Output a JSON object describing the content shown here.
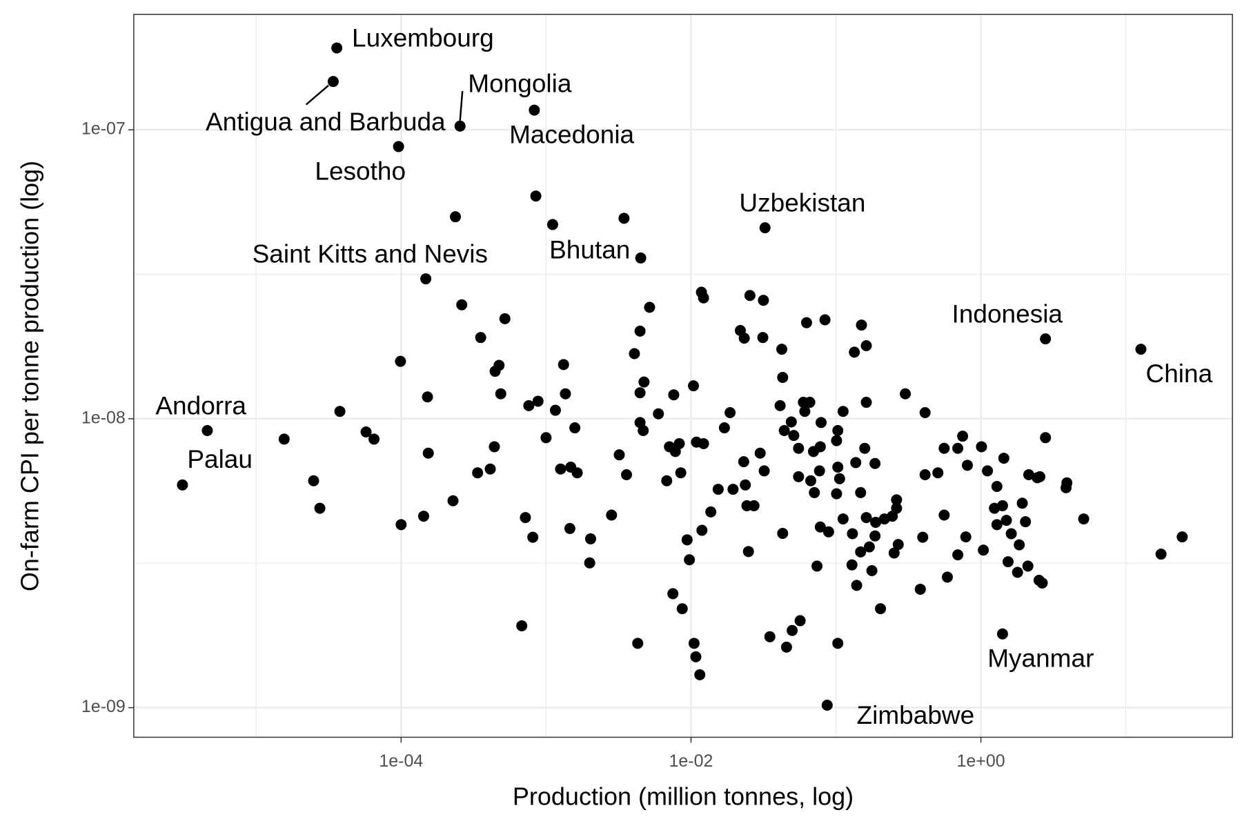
{
  "chart_data": {
    "type": "scatter",
    "xlabel": "Production (million tonnes, log)",
    "ylabel": "On-farm CPI per tonne production (log)",
    "xlog": true,
    "ylog": true,
    "grid": true,
    "color": "#000000",
    "xlim": [
      1.43e-06,
      54.4
    ],
    "ylim": [
      7.9e-10,
      2.51e-07
    ],
    "xticks": [
      {
        "value": 0.0001,
        "label": "1e-04"
      },
      {
        "value": 0.01,
        "label": "1e-02"
      },
      {
        "value": 1,
        "label": "1e+00"
      }
    ],
    "yticks": [
      {
        "value": 1e-09,
        "label": "1e-09"
      },
      {
        "value": 1e-08,
        "label": "1e-08"
      },
      {
        "value": 1e-07,
        "label": "1e-07"
      }
    ],
    "xgrid_minor": [
      1e-05,
      0.001,
      0.1,
      10
    ],
    "ygrid_minor": [
      3.162e-09,
      3.162e-08
    ],
    "x": [
      3.6e-05,
      3.4e-05,
      0.000255,
      0.00083,
      9.6e-05,
      0.000148,
      0.0045,
      0.0324,
      2.79,
      12.7,
      4.6e-06,
      3.1e-06,
      1.41,
      0.087,
      0.00085,
      0.000237,
      0.00111,
      0.00345,
      0.000262,
      0.00052,
      0.000354,
      0.000474,
      0.000445,
      0.000487,
      9.9e-05,
      0.000152,
      3.78e-05,
      1.56e-05,
      5.73e-05,
      6.5e-05,
      2.49e-05,
      2.75e-05,
      0.0001,
      0.000154,
      0.000143,
      0.000228,
      0.000337,
      0.000412,
      0.00044,
      0.00068,
      0.00072,
      0.00081,
      0.00076,
      0.00088,
      0.001,
      0.00116,
      0.00132,
      0.00136,
      0.00158,
      0.00126,
      0.00148,
      0.00164,
      0.00146,
      0.00203,
      0.002,
      0.00283,
      0.0032,
      0.00359,
      0.00407,
      0.00445,
      0.00518,
      0.00474,
      0.00445,
      0.00445,
      0.00468,
      0.00596,
      0.00429,
      0.0076,
      0.0104,
      0.0071,
      0.0083,
      0.0078,
      0.0068,
      0.0085,
      0.0109,
      0.0122,
      0.0118,
      0.0122,
      0.0094,
      0.00975,
      0.0119,
      0.0137,
      0.0075,
      0.0087,
      0.0105,
      0.0108,
      0.0115,
      0.0154,
      0.0195,
      0.017,
      0.0186,
      0.0219,
      0.0233,
      0.0255,
      0.0316,
      0.0313,
      0.0423,
      0.0429,
      0.0412,
      0.0231,
      0.03,
      0.032,
      0.0237,
      0.0243,
      0.0272,
      0.0249,
      0.0429,
      0.035,
      0.0456,
      0.0499,
      0.0566,
      0.044,
      0.0492,
      0.0512,
      0.0552,
      0.0552,
      0.0627,
      0.084,
      0.0596,
      0.066,
      0.061,
      0.079,
      0.07,
      0.078,
      0.067,
      0.077,
      0.071,
      0.078,
      0.089,
      0.074,
      0.103,
      0.101,
      0.103,
      0.112,
      0.103,
      0.106,
      0.101,
      0.112,
      0.13,
      0.15,
      0.162,
      0.134,
      0.162,
      0.158,
      0.137,
      0.186,
      0.148,
      0.162,
      0.188,
      0.216,
      0.245,
      0.262,
      0.262,
      0.186,
      0.17,
      0.148,
      0.129,
      0.177,
      0.139,
      0.203,
      0.252,
      0.269,
      0.301,
      0.412,
      0.397,
      0.382,
      0.412,
      0.505,
      0.558,
      0.558,
      0.587,
      0.693,
      0.748,
      0.807,
      0.693,
      0.787,
      1.01,
      1.11,
      1.04,
      1.29,
      1.44,
      1.24,
      1.41,
      1.29,
      1.5,
      1.62,
      1.54,
      1.84,
      1.93,
      2.03,
      1.79,
      2.11,
      2.14,
      2.45,
      2.55,
      2.79,
      2.52,
      2.65,
      3.92,
      3.87,
      5.12,
      17.5,
      24.5
    ],
    "values": [
      1.92e-07,
      1.47e-07,
      1.03e-07,
      1.17e-07,
      8.75e-08,
      3.05e-08,
      3.6e-08,
      4.58e-08,
      1.89e-08,
      1.74e-08,
      9.1e-09,
      5.9e-09,
      1.8e-09,
      1.02e-09,
      5.9e-08,
      5e-08,
      4.7e-08,
      4.94e-08,
      2.48e-08,
      2.22e-08,
      1.91e-08,
      1.53e-08,
      1.46e-08,
      1.22e-08,
      1.58e-08,
      1.19e-08,
      1.06e-08,
      8.5e-09,
      9e-09,
      8.5e-09,
      6.1e-09,
      4.9e-09,
      4.3e-09,
      7.6e-09,
      4.6e-09,
      5.2e-09,
      6.5e-09,
      6.7e-09,
      8e-09,
      1.92e-09,
      4.55e-09,
      3.89e-09,
      1.11e-08,
      1.15e-08,
      8.6e-09,
      1.07e-08,
      1.54e-08,
      1.22e-08,
      9.3e-09,
      6.7e-09,
      6.8e-09,
      6.5e-09,
      4.17e-09,
      3.84e-09,
      3.17e-09,
      4.64e-09,
      7.5e-09,
      6.4e-09,
      1.68e-08,
      2.01e-08,
      2.43e-08,
      1.34e-08,
      1.23e-08,
      9.7e-09,
      9.1e-09,
      1.04e-08,
      1.67e-09,
      1.21e-08,
      1.3e-08,
      8e-09,
      8.2e-09,
      7.7e-09,
      6.1e-09,
      6.5e-09,
      8.3e-09,
      8.2e-09,
      2.74e-08,
      2.62e-08,
      3.81e-09,
      3.25e-09,
      4.11e-09,
      4.76e-09,
      2.48e-09,
      2.2e-09,
      1.67e-09,
      1.5e-09,
      1.3e-09,
      5.7e-09,
      5.7e-09,
      9.3e-09,
      1.05e-08,
      2.02e-08,
      1.9e-08,
      2.67e-08,
      2.57e-08,
      1.91e-08,
      1.74e-08,
      1.39e-08,
      1.11e-08,
      7.1e-09,
      7.6e-09,
      6.6e-09,
      5.9e-09,
      5e-09,
      5e-09,
      3.47e-09,
      4.01e-09,
      1.76e-09,
      1.62e-09,
      1.85e-09,
      2e-09,
      9.1e-09,
      9.75e-09,
      8.75e-09,
      7.9e-09,
      6.3e-09,
      2.15e-08,
      2.2e-08,
      1.14e-08,
      1.14e-08,
      1.06e-08,
      9.7e-09,
      7.7e-09,
      8e-09,
      6.1e-09,
      6.6e-09,
      5.55e-09,
      4.22e-09,
      4.06e-09,
      3.09e-09,
      1.67e-09,
      8.4e-09,
      9.1e-09,
      1.06e-08,
      6.8e-09,
      6.2e-09,
      5.5e-09,
      4.5e-09,
      4e-09,
      2.11e-08,
      1.79e-08,
      1.7e-08,
      1.14e-08,
      7.9e-09,
      7.05e-09,
      7e-09,
      5.55e-09,
      4.55e-09,
      4.38e-09,
      4.5e-09,
      4.6e-09,
      4.9e-09,
      5.24e-09,
      3.93e-09,
      3.6e-09,
      3.46e-09,
      3.12e-09,
      2.98e-09,
      2.65e-09,
      2.2e-09,
      3.43e-09,
      3.67e-09,
      1.22e-08,
      1.05e-08,
      3.89e-09,
      2.57e-09,
      6.4e-09,
      6.5e-09,
      7.9e-09,
      4.64e-09,
      2.83e-09,
      7.9e-09,
      8.7e-09,
      6.9e-09,
      3.38e-09,
      3.9e-09,
      8e-09,
      6.6e-09,
      3.51e-09,
      5.83e-09,
      7.3e-09,
      4.9e-09,
      5e-09,
      4.3e-09,
      4.45e-09,
      4e-09,
      3.2e-09,
      3.66e-09,
      5.1e-09,
      4.4e-09,
      2.94e-09,
      3.09e-09,
      6.4e-09,
      6.25e-09,
      6.3e-09,
      8.6e-09,
      2.76e-09,
      2.7e-09,
      6e-09,
      5.77e-09,
      4.5e-09,
      3.4e-09,
      3.9e-09
    ],
    "labels": [
      "Luxembourg",
      "Antigua and Barbuda",
      "Mongolia",
      "Macedonia",
      "Lesotho",
      "Saint Kitts and Nevis",
      "Bhutan",
      "Uzbekistan",
      "Indonesia",
      "China",
      "Andorra",
      "Palau",
      "Myanmar",
      "Zimbabwe",
      null,
      null,
      null,
      null,
      null,
      null,
      null,
      null,
      null,
      null,
      null,
      null,
      null,
      null,
      null,
      null,
      null,
      null,
      null,
      null,
      null,
      null,
      null,
      null,
      null,
      null,
      null,
      null,
      null,
      null,
      null,
      null,
      null,
      null,
      null,
      null,
      null,
      null,
      null,
      null,
      null,
      null,
      null,
      null,
      null,
      null,
      null,
      null,
      null,
      null,
      null,
      null,
      null,
      null,
      null,
      null,
      null,
      null,
      null,
      null,
      null,
      null,
      null,
      null,
      null,
      null,
      null,
      null,
      null,
      null,
      null,
      null,
      null,
      null,
      null,
      null,
      null,
      null,
      null,
      null,
      null,
      null,
      null,
      null,
      null,
      null,
      null,
      null,
      null,
      null,
      null,
      null,
      null,
      null,
      null,
      null,
      null,
      null,
      null,
      null,
      null,
      null,
      null,
      null,
      null,
      null,
      null,
      null,
      null,
      null,
      null,
      null,
      null,
      null,
      null,
      null,
      null,
      null,
      null,
      null,
      null,
      null,
      null,
      null,
      null,
      null,
      null,
      null,
      null,
      null,
      null,
      null,
      null,
      null,
      null,
      null,
      null,
      null,
      null,
      null,
      null,
      null,
      null,
      null,
      null,
      null,
      null,
      null,
      null,
      null,
      null,
      null,
      null,
      null,
      null,
      null,
      null,
      null,
      null,
      null,
      null,
      null,
      null,
      null,
      null,
      null,
      null,
      null,
      null,
      null,
      null,
      null,
      null,
      null,
      null,
      null,
      null,
      null,
      null,
      null,
      null,
      null,
      null,
      null,
      null,
      null,
      null,
      null,
      null
    ]
  }
}
